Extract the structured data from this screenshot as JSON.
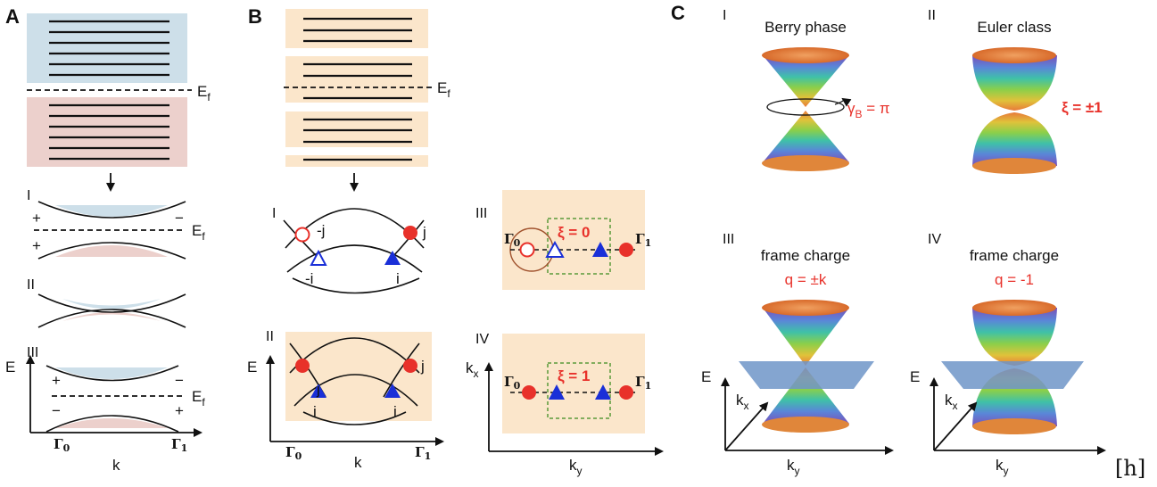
{
  "panels": {
    "A": {
      "label": "A",
      "fermi": "E",
      "fermi_sub": "f",
      "sub": [
        "I",
        "II",
        "III"
      ],
      "signs": {
        "plus": "+",
        "minus": "−"
      },
      "axis_e": "E",
      "axis_k": "k",
      "gamma0": "Γ",
      "gamma0_sub": "0",
      "gamma1": "Γ",
      "gamma1_sub": "1"
    },
    "B": {
      "label": "B",
      "fermi": "E",
      "fermi_sub": "f",
      "sub": [
        "I",
        "II",
        "III",
        "IV"
      ],
      "labels_I": [
        "-j",
        "j",
        "-i",
        "i"
      ],
      "labels_II": [
        "j",
        "j",
        "i",
        "i"
      ],
      "axis_e": "E",
      "axis_k": "k",
      "axis_kx": "k",
      "axis_kx_sub": "x",
      "axis_ky": "k",
      "axis_ky_sub": "y",
      "gamma0": "Γ",
      "gamma0_sub": "0",
      "gamma1": "Γ",
      "gamma1_sub": "1",
      "xi_III": "ξ = 0",
      "xi_IV": "ξ = 1"
    },
    "C": {
      "label": "C",
      "sub": [
        "I",
        "II",
        "III",
        "IV"
      ],
      "titles": [
        "Berry phase",
        "Euler class",
        "frame charge",
        "frame charge"
      ],
      "gamma_b": "γ",
      "gamma_b_sub": "B",
      "gamma_b_val": " = π",
      "xi_II": "ξ = ±1",
      "charge_III": "q = ±k",
      "charge_IV": "q = -1",
      "axis_e": "E",
      "axis_kx": "k",
      "axis_kx_sub": "x",
      "axis_ky": "k",
      "axis_ky_sub": "y"
    }
  },
  "bracket_tag": "[h]",
  "colors": {
    "blue_fill": "#cddfe9",
    "pink_fill": "#ecd0cc",
    "peach_fill": "#fbe6cb",
    "red_marker": "#e8312a",
    "blue_marker": "#1a2fd8",
    "green_box": "#5a9a3a",
    "plane": "#6f95c8"
  }
}
